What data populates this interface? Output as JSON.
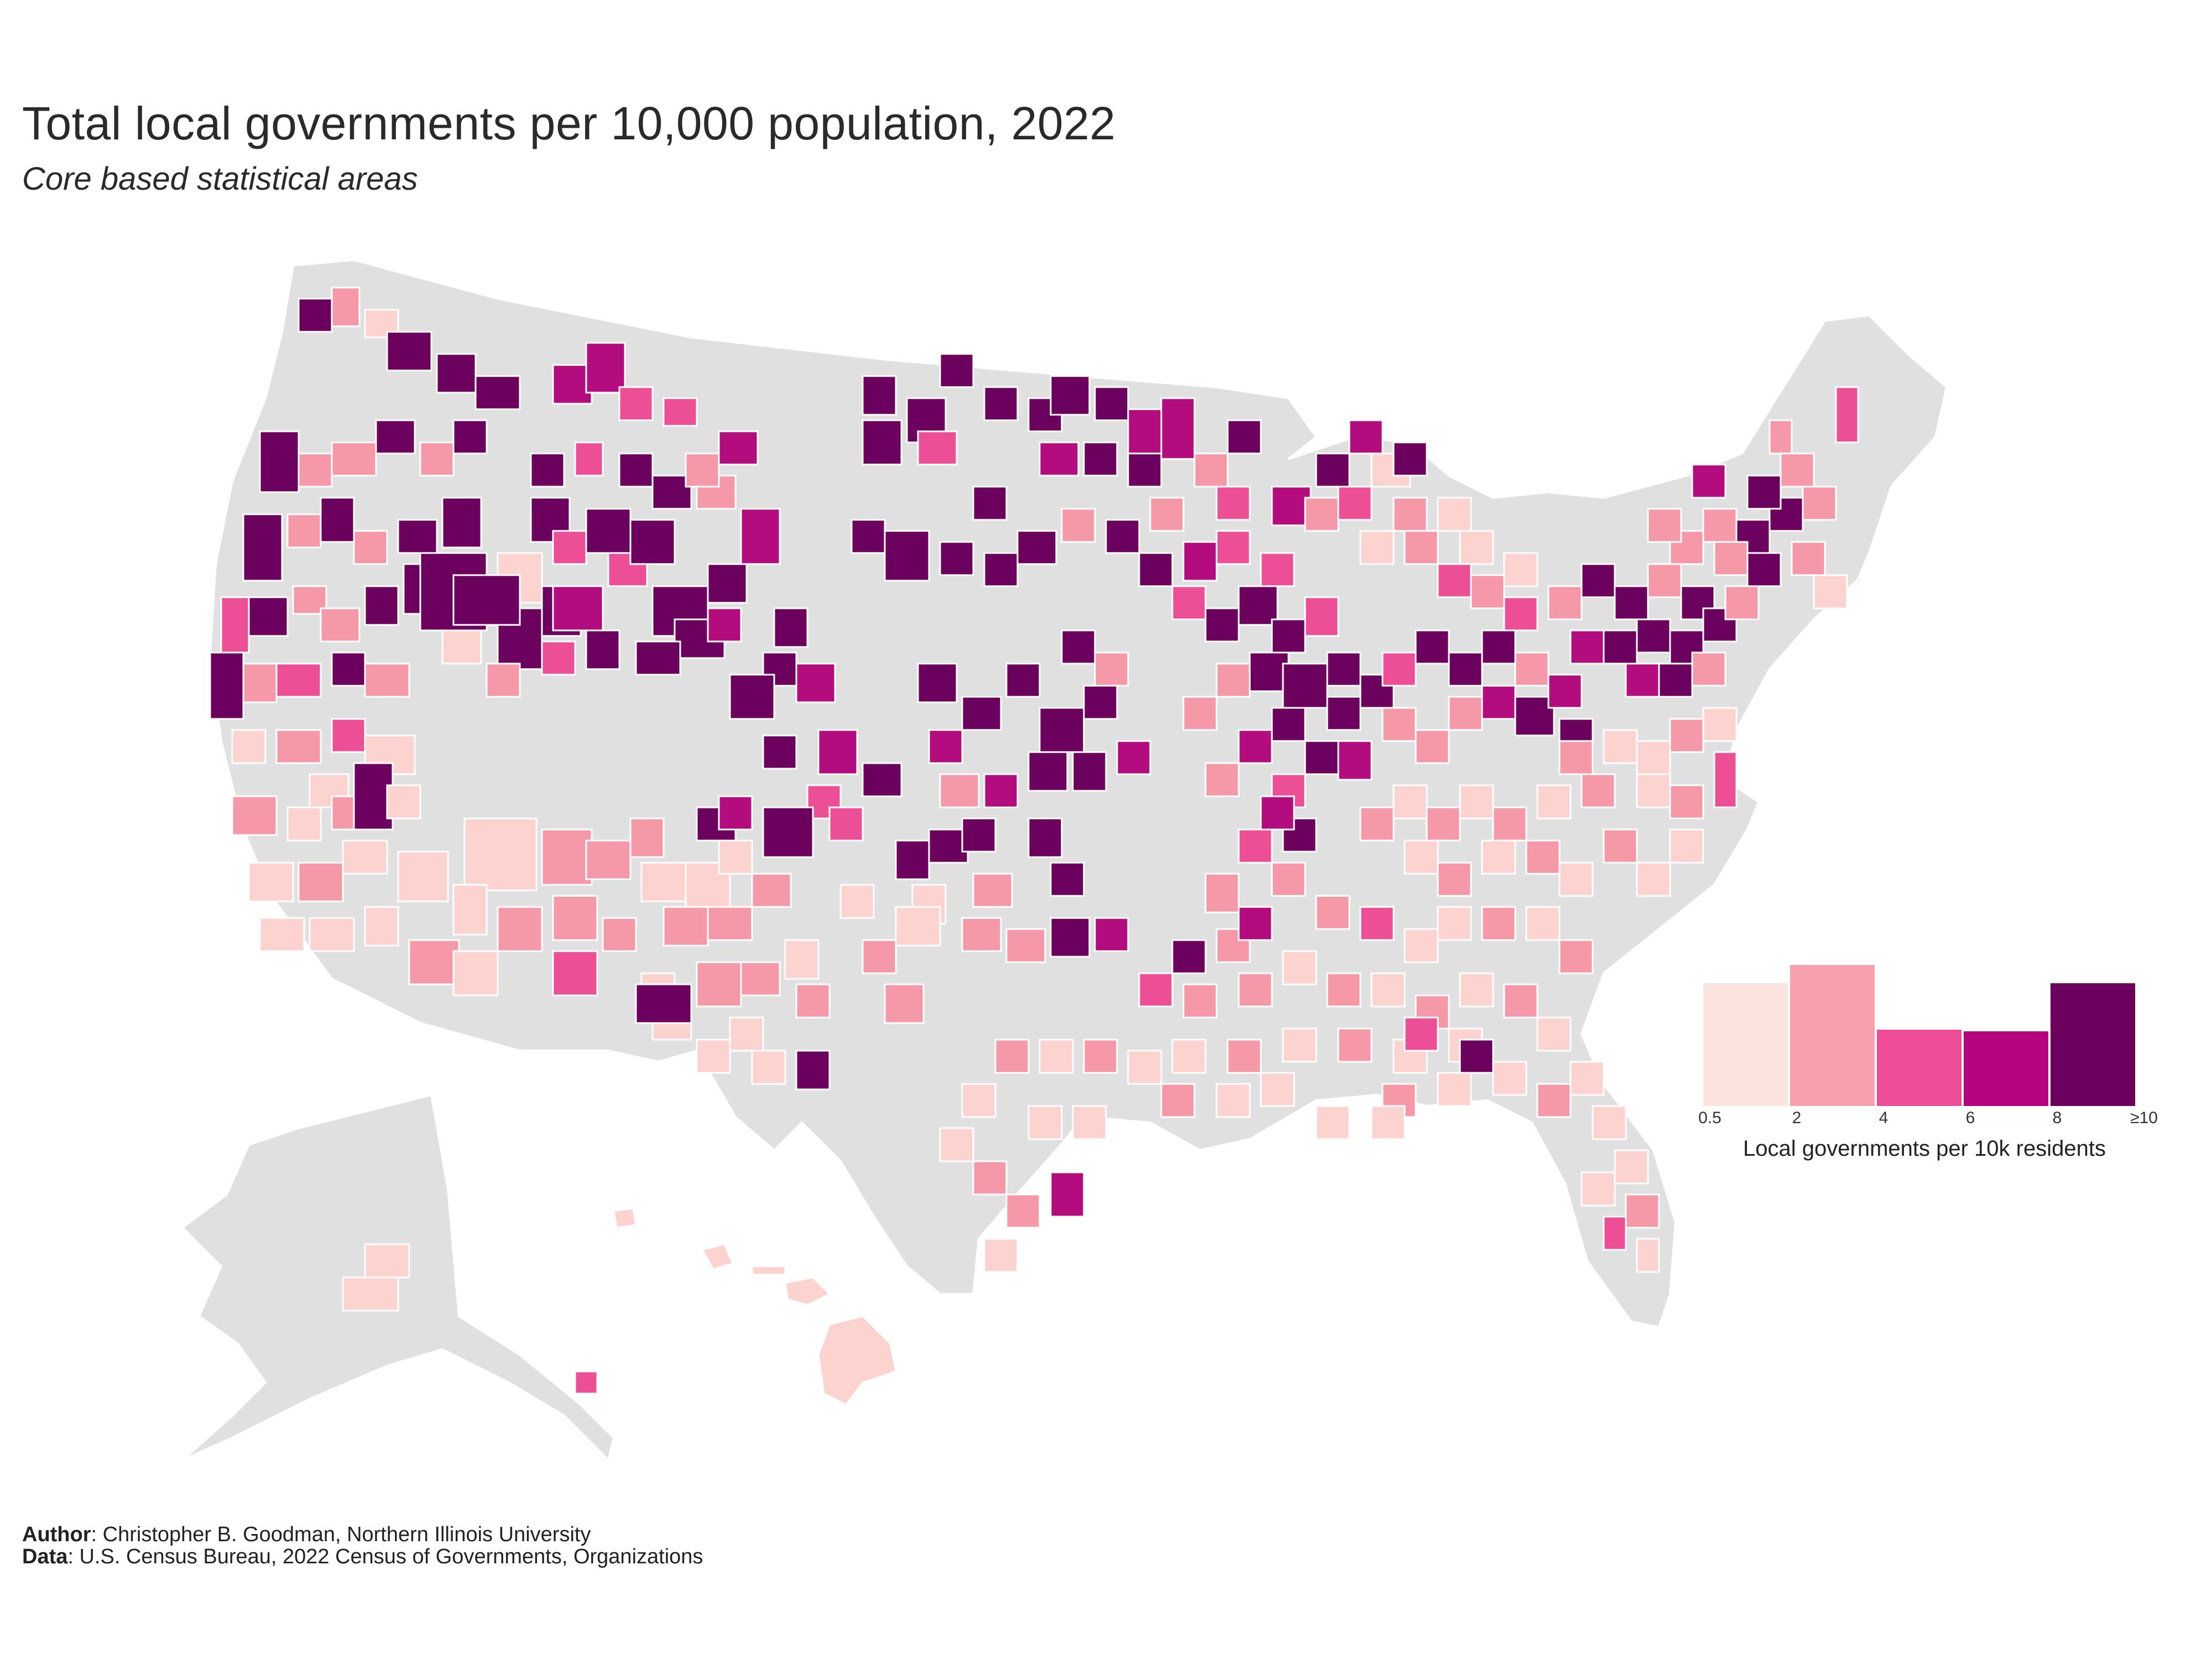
{
  "title": "Total local governments per 10,000 population, 2022",
  "subtitle": "Core based statistical areas",
  "legend": {
    "title": "Local governments per 10k residents",
    "ticks": [
      "0.5",
      "2",
      "4",
      "6",
      "8",
      "≥10"
    ],
    "bins": [
      {
        "range": "0.5–2",
        "color": "#fbe3de",
        "share": 0.74
      },
      {
        "range": "2–4",
        "color": "#f7a1ac",
        "share": 0.85
      },
      {
        "range": "4–6",
        "color": "#ee4c97",
        "share": 0.46
      },
      {
        "range": "6–8",
        "color": "#b5047d",
        "share": 0.45
      },
      {
        "range": "≥10",
        "color": "#6b005f",
        "share": 0.74
      }
    ]
  },
  "colors": {
    "no_data": "#e0e0e0",
    "border": "#ffffff",
    "class_1": "#fcd3cf",
    "class_2": "#f598a7",
    "class_3": "#ec4f96",
    "class_4": "#b30c7e",
    "class_5": "#6c005f"
  },
  "footer": {
    "author_label": "Author",
    "author_text": ": Christopher B. Goodman, Northern Illinois University",
    "data_label": "Data",
    "data_text": ": U.S. Census Bureau, 2022 Census of Governments, Organizations"
  }
}
